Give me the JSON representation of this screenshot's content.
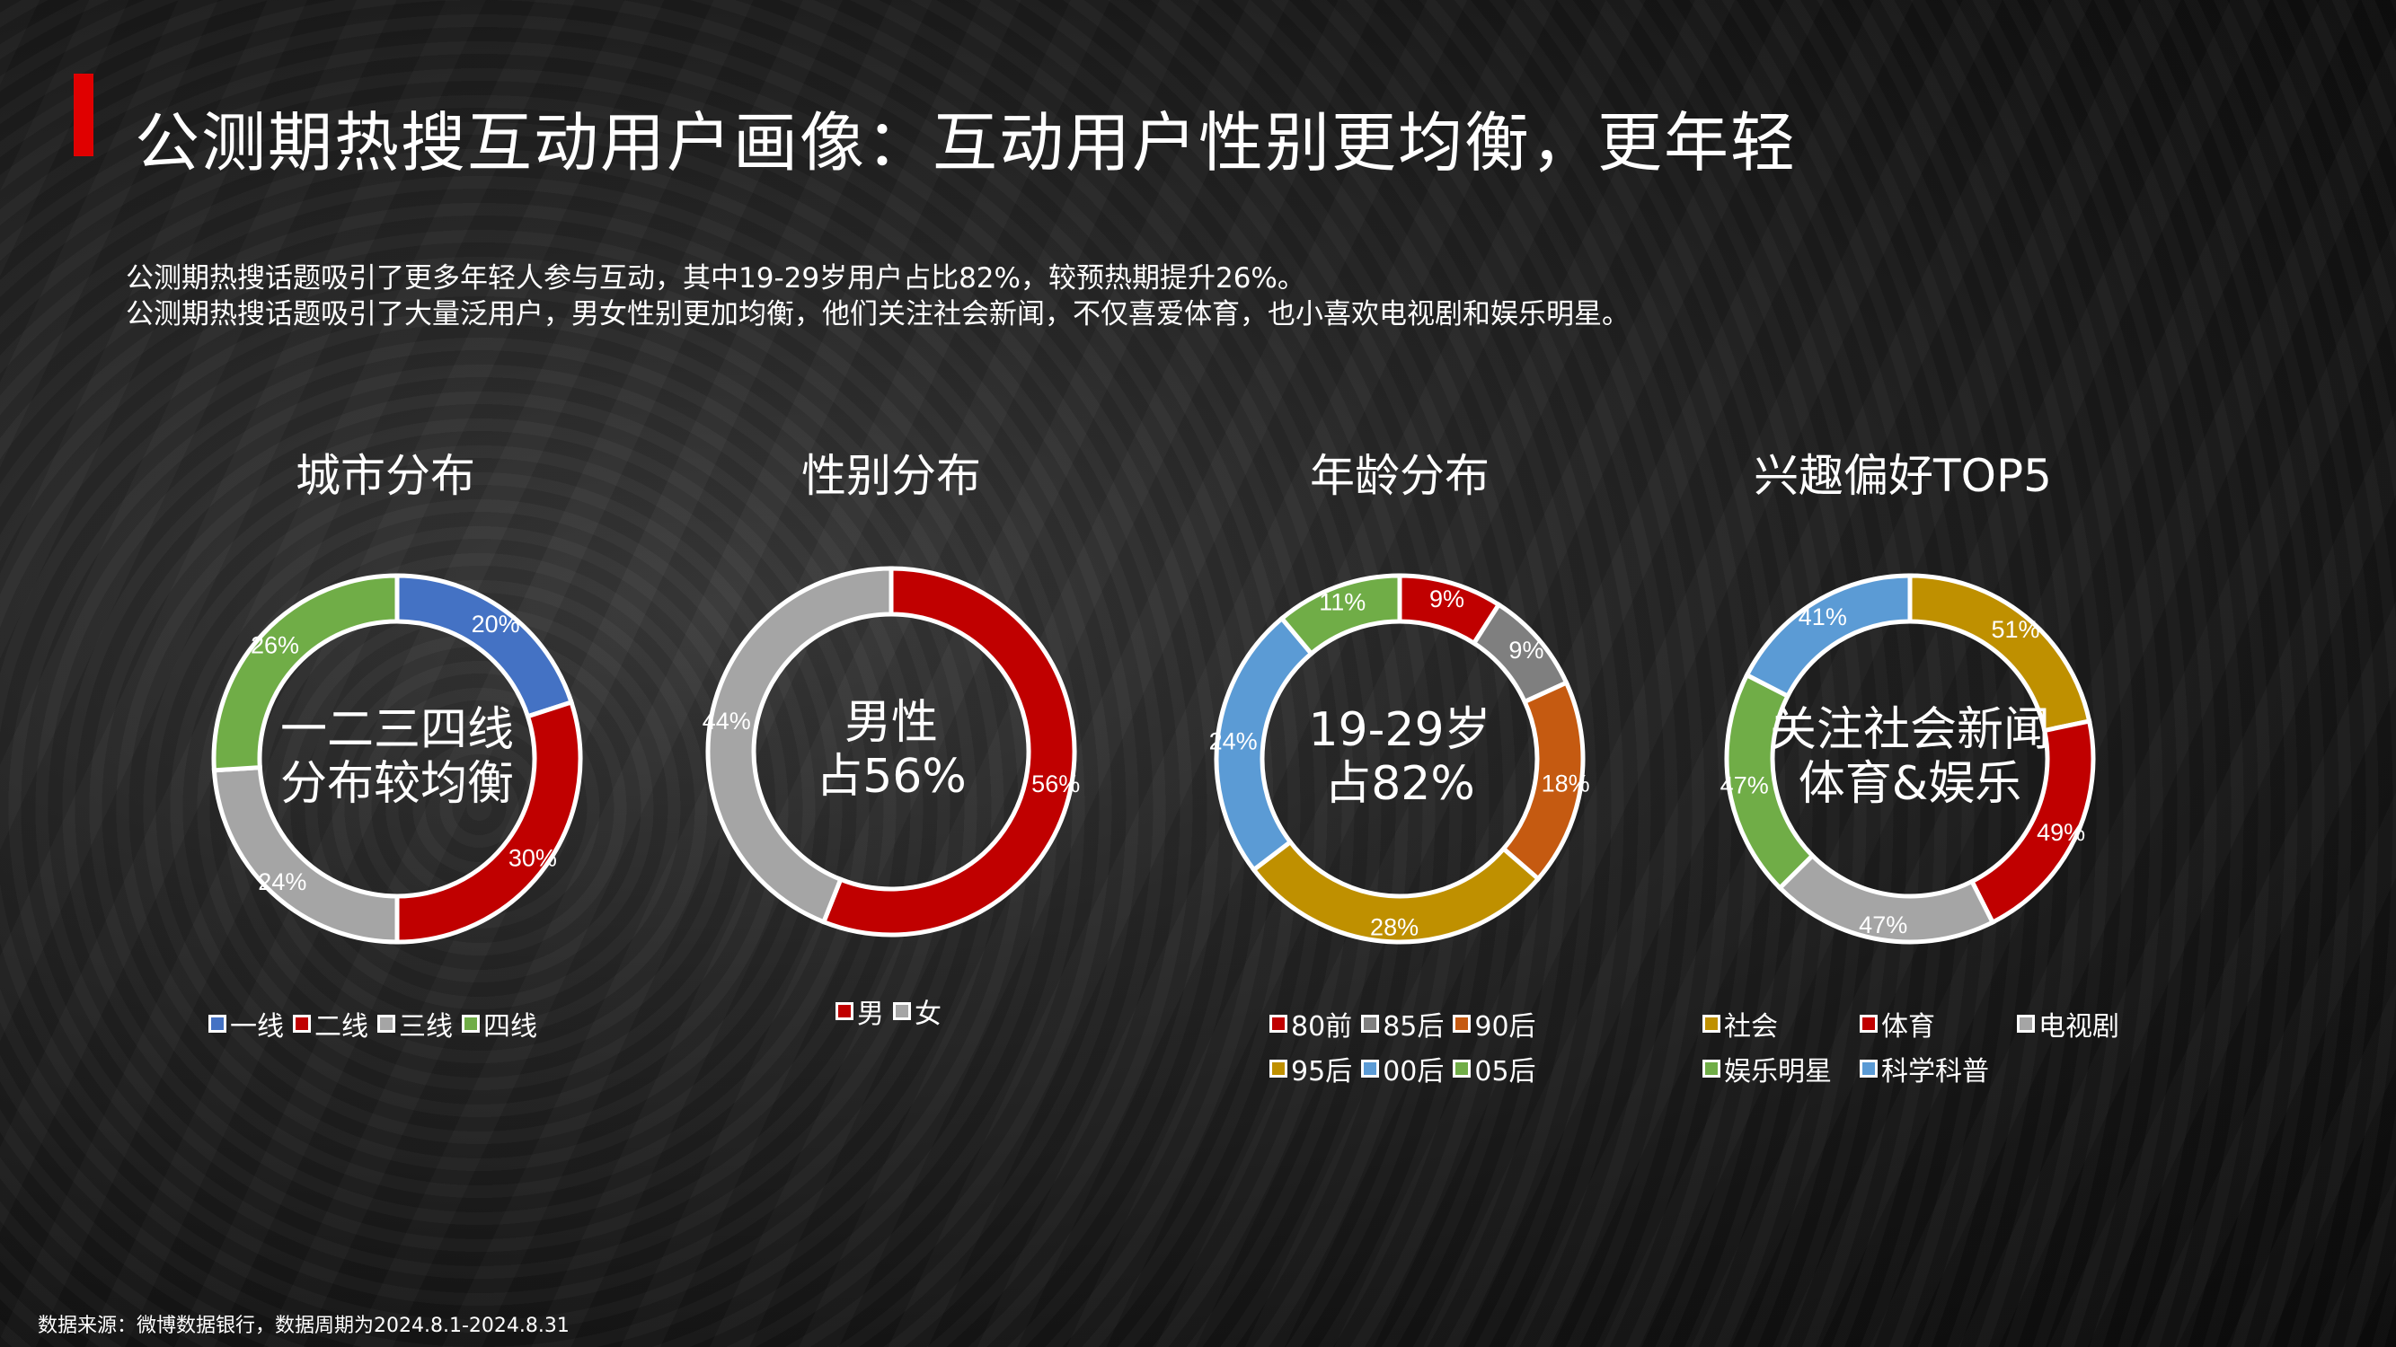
{
  "title": "公测期热搜互动用户画像：互动用户性别更均衡，更年轻",
  "subtitle": [
    "公测期热搜话题吸引了更多年轻人参与互动，其中19-29岁用户占比82%，较预热期提升26%。",
    "公测期热搜话题吸引了大量泛用户，男女性别更加均衡，他们关注社会新闻，不仅喜爱体育，也小喜欢电视剧和娱乐明星。"
  ],
  "footer": "数据来源：微博数据银行，数据周期为2024.8.1-2024.8.31",
  "chart_data": [
    {
      "type": "pie",
      "title": "城市分布",
      "center_text": [
        "一二三四线",
        "分布较均衡"
      ],
      "categories": [
        "一线",
        "二线",
        "三线",
        "四线"
      ],
      "values": [
        20,
        30,
        24,
        26
      ],
      "labels": [
        "20%",
        "30%",
        "24%",
        "26%"
      ],
      "colors": [
        "#4472c4",
        "#c00000",
        "#a5a5a5",
        "#70ad47"
      ]
    },
    {
      "type": "pie",
      "title": "性别分布",
      "center_text": [
        "男性",
        "占56%"
      ],
      "categories": [
        "男",
        "女"
      ],
      "values": [
        56,
        44
      ],
      "labels": [
        "56%",
        "44%"
      ],
      "colors": [
        "#c00000",
        "#a5a5a5"
      ]
    },
    {
      "type": "pie",
      "title": "年龄分布",
      "center_text": [
        "19-29岁",
        "占82%"
      ],
      "categories": [
        "80前",
        "85后",
        "90后",
        "95后",
        "00后",
        "05后"
      ],
      "values": [
        9,
        9,
        18,
        28,
        24,
        11
      ],
      "labels": [
        "9%",
        "9%",
        "18%",
        "28%",
        "24%",
        "11%"
      ],
      "colors": [
        "#c00000",
        "#7f7f7f",
        "#c55a11",
        "#bf9000",
        "#5b9bd5",
        "#70ad47"
      ]
    },
    {
      "type": "pie",
      "title": "兴趣偏好TOP5",
      "center_text": [
        "关注社会新闻",
        "体育&娱乐"
      ],
      "categories": [
        "社会",
        "体育",
        "电视剧",
        "娱乐明星",
        "科学科普"
      ],
      "values": [
        51,
        49,
        47,
        47,
        41
      ],
      "labels": [
        "51%",
        "49%",
        "47%",
        "47%",
        "41%"
      ],
      "colors": [
        "#bf9000",
        "#c00000",
        "#a5a5a5",
        "#70ad47",
        "#5b9bd5"
      ]
    }
  ]
}
